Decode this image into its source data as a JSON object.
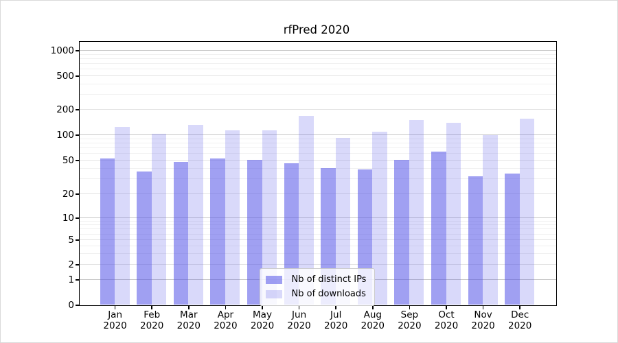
{
  "title": "rfPred 2020",
  "chart_data": {
    "type": "bar",
    "title": "rfPred 2020",
    "categories": [
      "Jan 2020",
      "Feb 2020",
      "Mar 2020",
      "Apr 2020",
      "May 2020",
      "Jun 2020",
      "Jul 2020",
      "Aug 2020",
      "Sep 2020",
      "Oct 2020",
      "Nov 2020",
      "Dec 2020"
    ],
    "series": [
      {
        "name": "Nb of distinct IPs",
        "color": "#5252e8",
        "alpha": 0.55,
        "rendered_color": "#a0a0f2",
        "values": [
          52,
          37,
          48,
          52,
          50,
          46,
          40,
          39,
          50,
          63,
          32,
          35
        ]
      },
      {
        "name": "Nb of downloads",
        "color": "#5252e8",
        "alpha": 0.22,
        "rendered_color": "#d9d9fa",
        "values": [
          123,
          102,
          132,
          114,
          112,
          166,
          92,
          108,
          151,
          138,
          100,
          155
        ]
      }
    ],
    "xlabel": "",
    "ylabel": "",
    "yscale": "symlog",
    "y_ticks": [
      0,
      1,
      2,
      5,
      10,
      20,
      50,
      100,
      200,
      500,
      1000
    ],
    "y_minor_ticks": [
      3,
      4,
      6,
      7,
      8,
      9,
      30,
      40,
      60,
      70,
      80,
      90,
      300,
      400,
      600,
      700,
      800,
      900
    ],
    "grid": true,
    "legend_position": "lower center"
  },
  "colors": {
    "bar_base": "#5252e8",
    "grid_decade": "#c8c8c8",
    "grid_major": "#e3e3e3",
    "grid_minor": "#f0f0f0",
    "spine": "#000000",
    "legend_border": "#cccccc",
    "background": "#ffffff"
  }
}
